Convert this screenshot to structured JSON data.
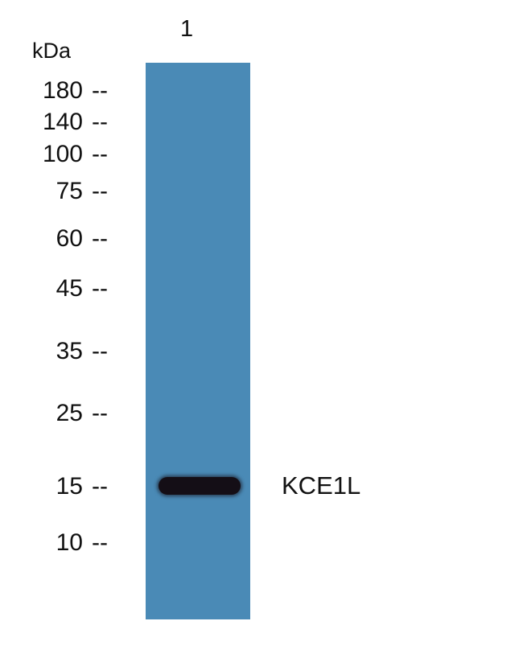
{
  "lane_labels": [
    "1"
  ],
  "unit": "kDa",
  "markers": [
    "180",
    "140",
    "100",
    "75",
    "60",
    "45",
    "35",
    "25",
    "15",
    "10"
  ],
  "marker_dash": "--",
  "band_label": "KCE1L",
  "colors": {
    "membrane": "#4a8ab6",
    "band": "#140e16"
  }
}
